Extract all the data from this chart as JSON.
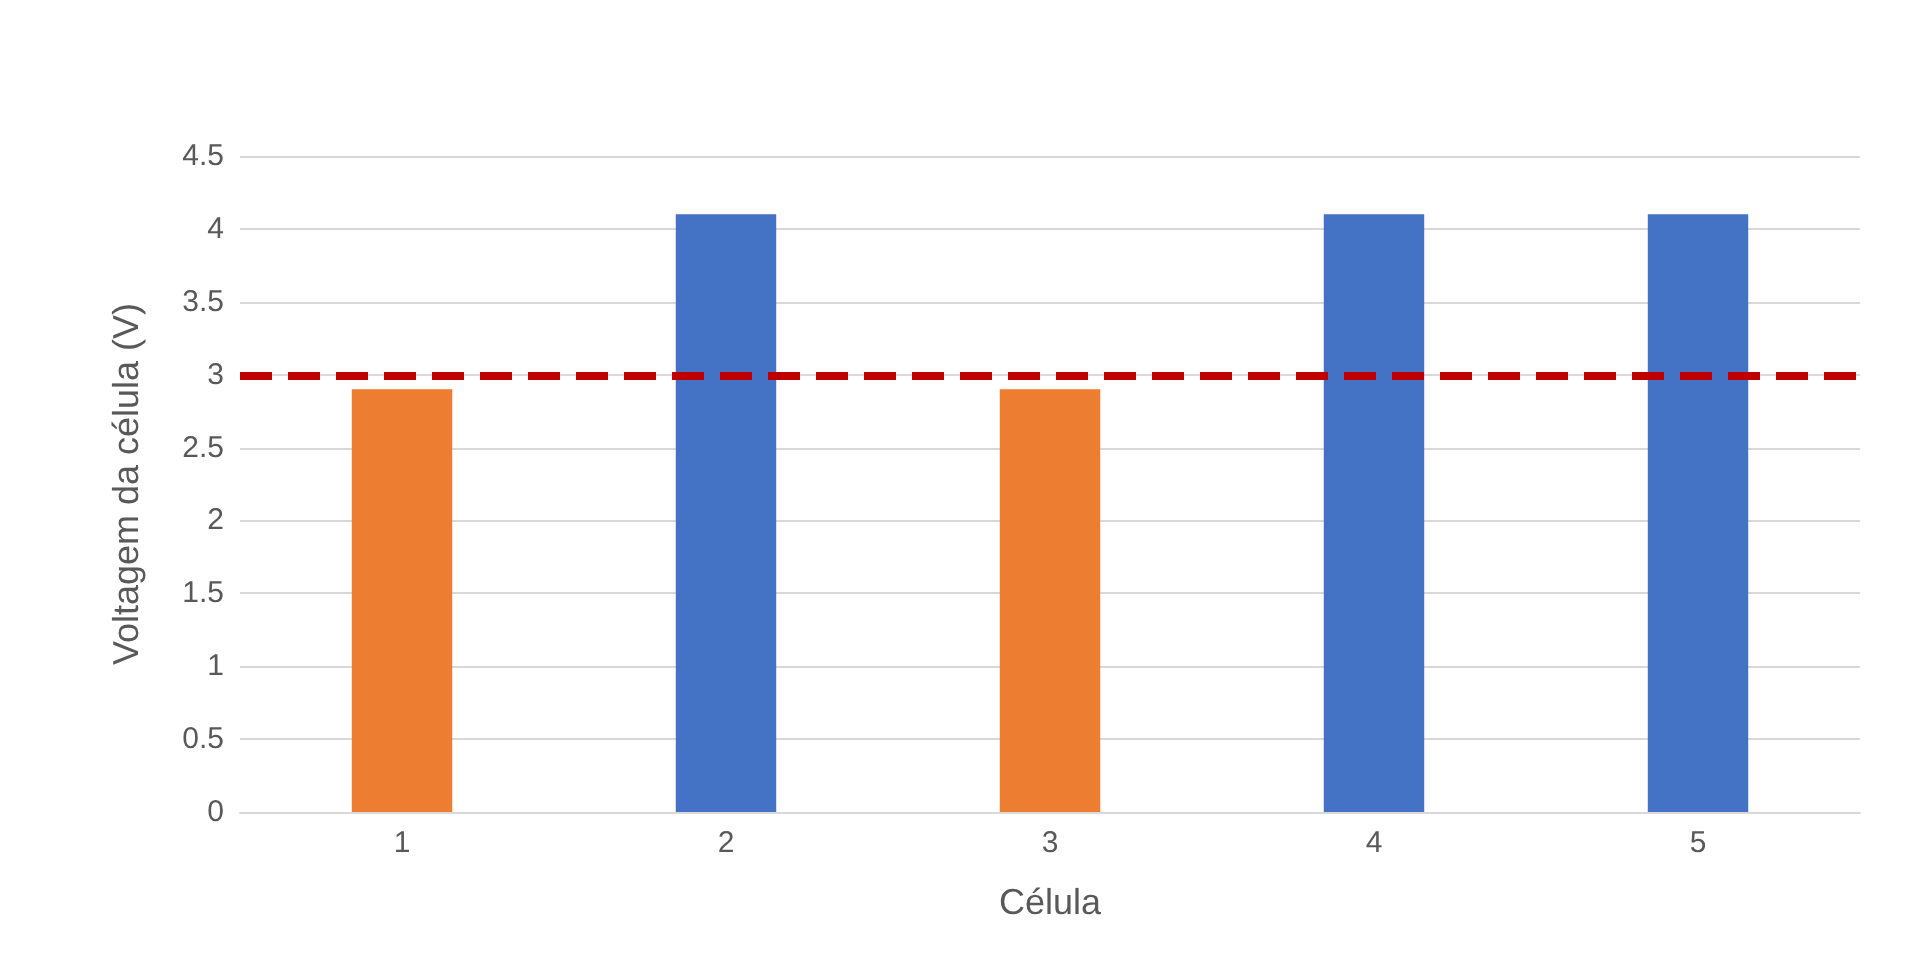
{
  "chart_data": {
    "type": "bar",
    "xlabel": "Célula",
    "ylabel": "Voltagem da célula (V)",
    "categories": [
      "1",
      "2",
      "3",
      "4",
      "5"
    ],
    "values": [
      2.9,
      4.1,
      2.9,
      4.1,
      4.1
    ],
    "colors": [
      "#ed7d31",
      "#4472c4",
      "#ed7d31",
      "#4472c4",
      "#4472c4"
    ],
    "ylim": [
      0,
      4.5
    ],
    "yticks": [
      0,
      0.5,
      1,
      1.5,
      2,
      2.5,
      3,
      3.5,
      4,
      4.5
    ],
    "grid": "y",
    "ref_lines": [
      {
        "axis": "y",
        "value": 3,
        "color": "#c00000",
        "line_style": "dashed"
      }
    ]
  }
}
